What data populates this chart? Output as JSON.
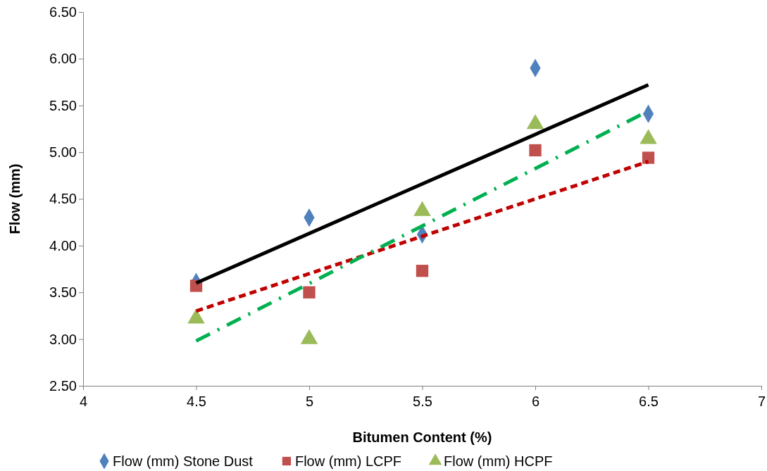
{
  "chart_data": {
    "type": "scatter",
    "xlabel": "Bitumen Content (%)",
    "ylabel": "Flow (mm)",
    "xlim": [
      4,
      7
    ],
    "xticks": [
      4,
      4.5,
      5,
      5.5,
      6,
      6.5,
      7
    ],
    "ylim": [
      2.5,
      6.5
    ],
    "yticks": [
      {
        "value": 2.5,
        "label": "2.50"
      },
      {
        "value": 3,
        "label": "3.00"
      },
      {
        "value": 3.5,
        "label": "3.50"
      },
      {
        "value": 4,
        "label": "4.00"
      },
      {
        "value": 4.5,
        "label": "4.50"
      },
      {
        "value": 5,
        "label": "5.00"
      },
      {
        "value": 5.5,
        "label": "5.50"
      },
      {
        "value": 6,
        "label": "6.00"
      },
      {
        "value": 6.5,
        "label": "6.50"
      }
    ],
    "grid": false,
    "legend": "bottom",
    "series": [
      {
        "name": "Flow (mm) Stone Dust",
        "marker": "diamond",
        "color": "#4f81bd",
        "x": [
          4.5,
          5,
          5.5,
          6,
          6.5
        ],
        "values": [
          3.61,
          4.3,
          4.12,
          5.9,
          5.41
        ]
      },
      {
        "name": "Flow (mm) LCPF",
        "marker": "square",
        "color": "#c0504d",
        "x": [
          4.5,
          5,
          5.5,
          6,
          6.5
        ],
        "values": [
          3.57,
          3.5,
          3.73,
          5.02,
          4.94
        ]
      },
      {
        "name": "Flow (mm) HCPF",
        "marker": "triangle",
        "color": "#9bbb59",
        "x": [
          4.5,
          5,
          5.5,
          6,
          6.5
        ],
        "values": [
          3.22,
          3.0,
          4.37,
          5.3,
          5.14
        ]
      },
      {
        "type": "line",
        "marker": "none",
        "line_style": "solid",
        "color": "#000000",
        "x": [
          4.5,
          6.5
        ],
        "values": [
          3.6,
          5.72
        ]
      },
      {
        "type": "line",
        "marker": "none",
        "line_style": "dashed",
        "color": "#c00000",
        "x": [
          4.5,
          6.5
        ],
        "values": [
          3.3,
          4.9
        ]
      },
      {
        "type": "line",
        "marker": "none",
        "line_style": "dashdot",
        "color": "#00b050",
        "x": [
          4.5,
          6.5
        ],
        "values": [
          2.98,
          5.44
        ]
      }
    ]
  }
}
